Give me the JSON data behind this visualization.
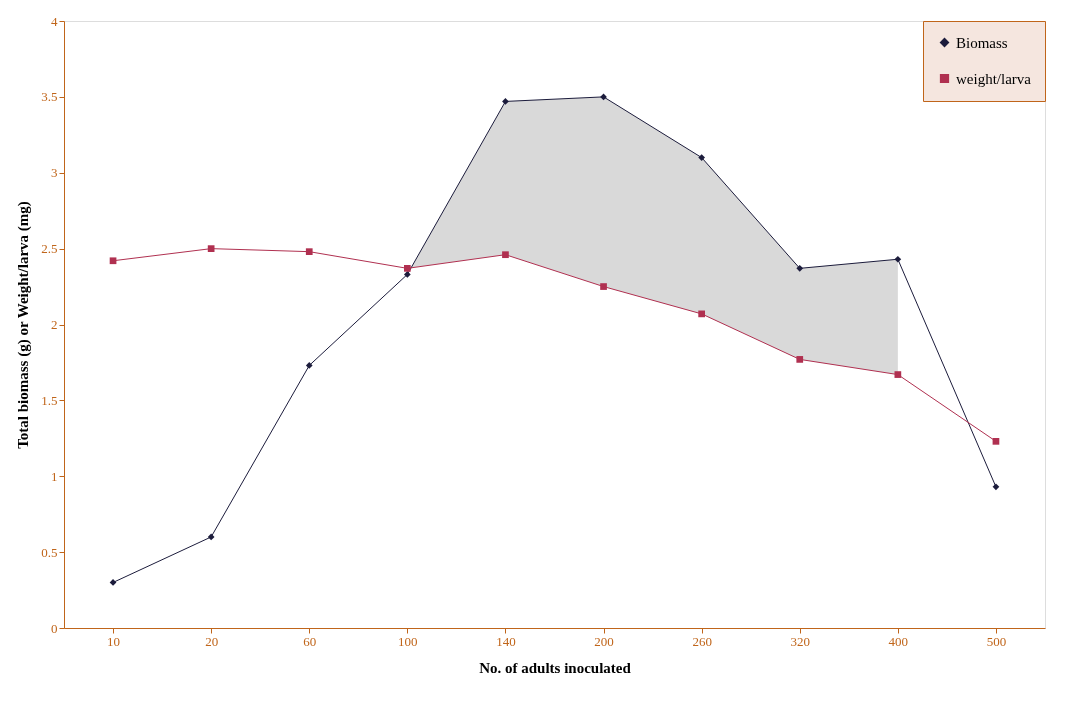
{
  "chart_data": {
    "type": "line",
    "xlabel": "No. of adults inoculated",
    "ylabel": "Total biomass (g) or Weight/larva (mg)",
    "categories": [
      "10",
      "20",
      "60",
      "100",
      "140",
      "200",
      "260",
      "320",
      "400",
      "500"
    ],
    "series": [
      {
        "name": "Biomass",
        "color": "#1c1c3c",
        "marker": "diamond",
        "values": [
          0.3,
          0.6,
          1.73,
          2.33,
          3.47,
          3.5,
          3.1,
          2.37,
          2.43,
          0.93
        ],
        "lower": [
          null,
          null,
          null,
          2.37,
          2.46,
          2.25,
          2.07,
          1.77,
          1.67,
          null
        ],
        "upper": [
          null,
          null,
          null,
          2.33,
          3.47,
          3.5,
          3.1,
          2.37,
          2.43,
          null
        ]
      },
      {
        "name": "weight/larva",
        "color": "#b03050",
        "marker": "square",
        "values": [
          2.42,
          2.5,
          2.48,
          2.37,
          2.46,
          2.25,
          2.07,
          1.77,
          1.67,
          1.23
        ]
      }
    ],
    "ylim": [
      0,
      4
    ],
    "yticks": [
      0,
      0.5,
      1,
      1.5,
      2,
      2.5,
      3,
      3.5,
      4
    ],
    "grid": false,
    "legend": "top right"
  }
}
